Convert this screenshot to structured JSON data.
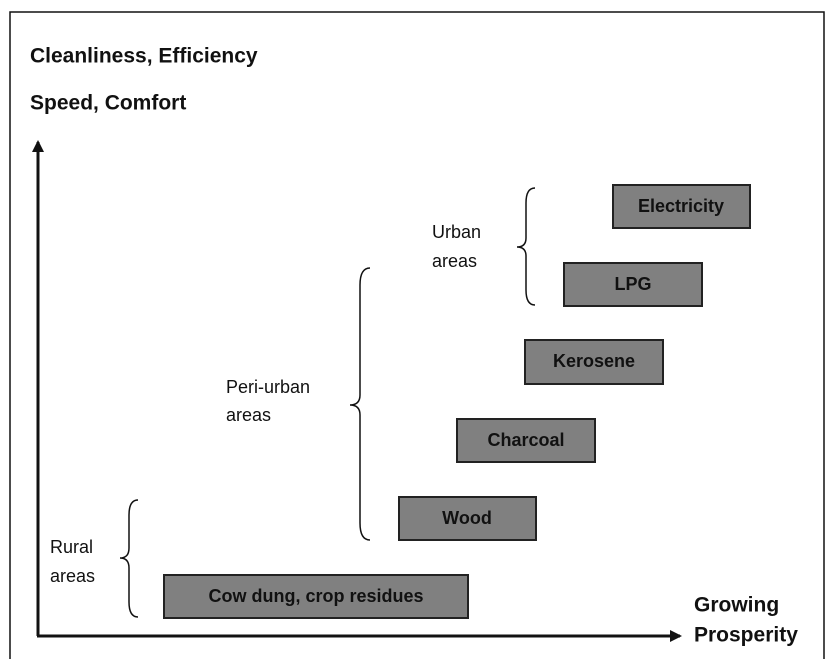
{
  "y_axis_label": [
    "Cleanliness, Efficiency",
    "Speed, Comfort"
  ],
  "x_axis_label": [
    "Growing",
    "Prosperity"
  ],
  "fuels": [
    "Cow dung, crop residues",
    "Wood",
    "Charcoal",
    "Kerosene",
    "LPG",
    "Electricity"
  ],
  "groups": [
    {
      "label": [
        "Rural",
        "areas"
      ]
    },
    {
      "label": [
        "Peri-urban",
        "areas"
      ]
    },
    {
      "label": [
        "Urban",
        "areas"
      ]
    }
  ]
}
